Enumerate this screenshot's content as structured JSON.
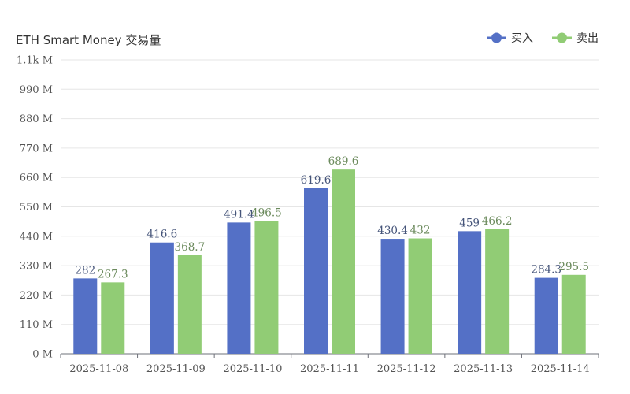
{
  "chart_data": {
    "type": "bar",
    "title": "ETH Smart Money 交易量",
    "categories": [
      "2025-11-08",
      "2025-11-09",
      "2025-11-10",
      "2025-11-11",
      "2025-11-12",
      "2025-11-13",
      "2025-11-14"
    ],
    "series": [
      {
        "name": "买入",
        "color": "#5470c6",
        "values": [
          282,
          416.6,
          491.4,
          619.6,
          430.4,
          459,
          284.3
        ],
        "labels": [
          "282",
          "416.6",
          "491.4",
          "619.6",
          "430.4",
          "459",
          "284.3"
        ]
      },
      {
        "name": "卖出",
        "color": "#91cc75",
        "values": [
          267.3,
          368.7,
          496.5,
          689.6,
          432,
          466.2,
          295.5
        ],
        "labels": [
          "267.3",
          "368.7",
          "496.5",
          "689.6",
          "432",
          "466.2",
          "295.5"
        ]
      }
    ],
    "ylim": [
      0,
      1100
    ],
    "yticks": [
      0,
      110,
      220,
      330,
      440,
      550,
      660,
      770,
      880,
      990,
      1100
    ],
    "ytick_labels": [
      "0 M",
      "110 M",
      "220 M",
      "330 M",
      "440 M",
      "550 M",
      "660 M",
      "770 M",
      "880 M",
      "990 M",
      "1.1k M"
    ],
    "grid": true,
    "legend_position": "top-right"
  }
}
